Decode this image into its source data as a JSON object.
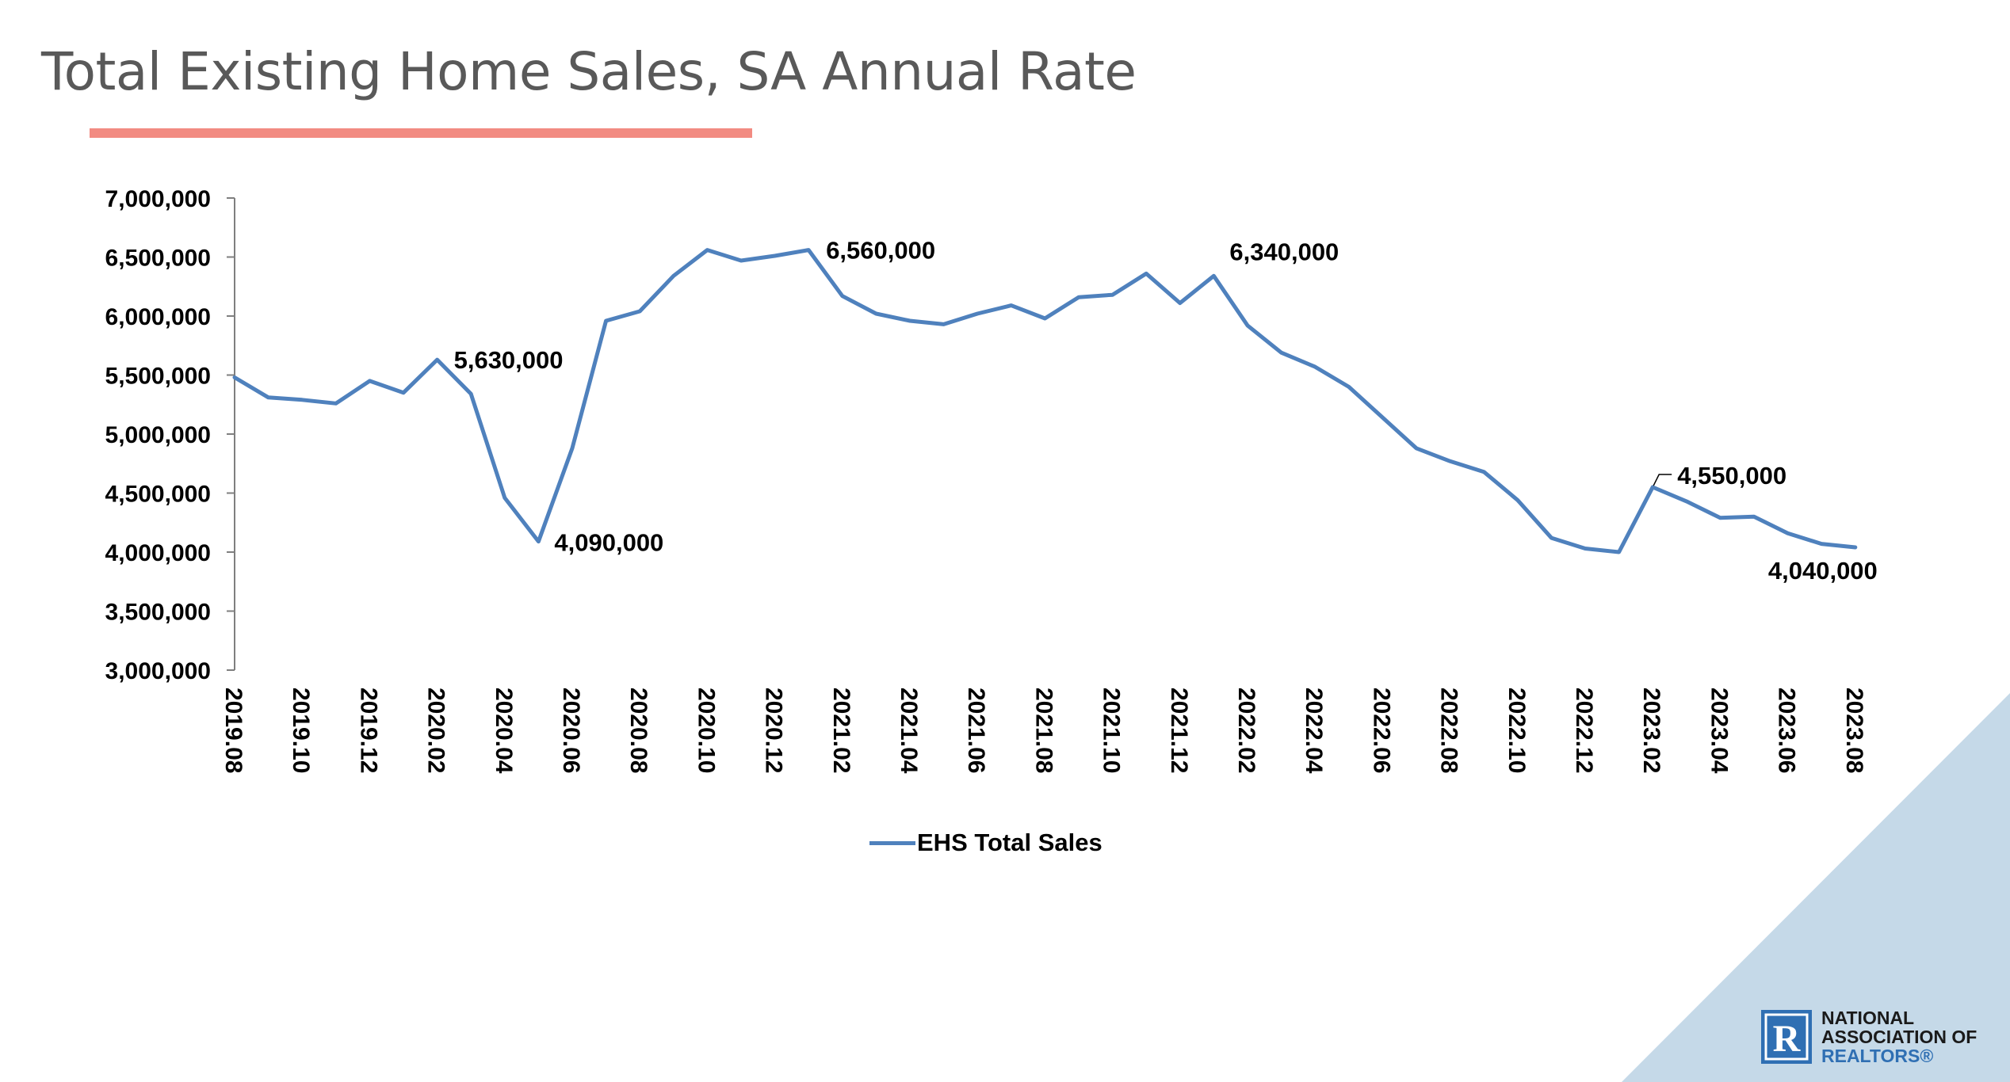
{
  "page": {
    "title": "Total Existing Home Sales, SA Annual Rate"
  },
  "colors": {
    "series": "#4f81bd",
    "title_underline": "#f28b82",
    "corner_triangle": "#c5d9e8",
    "logo_blue": "#2f6fb3"
  },
  "logo": {
    "icon": "realtor-r-logo-icon",
    "line1": "NATIONAL",
    "line2": "ASSOCIATION OF",
    "line3": "REALTORS®"
  },
  "chart_data": {
    "type": "line",
    "title": "Total Existing Home Sales, SA Annual Rate",
    "xlabel": "",
    "ylabel": "",
    "ylim": [
      3000000,
      7000000
    ],
    "y_ticks": [
      3000000,
      3500000,
      4000000,
      4500000,
      5000000,
      5500000,
      6000000,
      6500000,
      7000000
    ],
    "y_tick_labels": [
      "3,000,000",
      "3,500,000",
      "4,000,000",
      "4,500,000",
      "5,000,000",
      "5,500,000",
      "6,000,000",
      "6,500,000",
      "7,000,000"
    ],
    "x_tick_labels": [
      "2019.08",
      "2019.10",
      "2019.12",
      "2020.02",
      "2020.04",
      "2020.06",
      "2020.08",
      "2020.10",
      "2020.12",
      "2021.02",
      "2021.04",
      "2021.06",
      "2021.08",
      "2021.10",
      "2021.12",
      "2022.02",
      "2022.04",
      "2022.06",
      "2022.08",
      "2022.10",
      "2022.12",
      "2023.02",
      "2023.04",
      "2023.06",
      "2023.08"
    ],
    "x_tick_label_rotation": "vertical",
    "grid": false,
    "legend": "bottom",
    "x": [
      "2019.08",
      "2019.09",
      "2019.10",
      "2019.11",
      "2019.12",
      "2020.01",
      "2020.02",
      "2020.03",
      "2020.04",
      "2020.05",
      "2020.06",
      "2020.07",
      "2020.08",
      "2020.09",
      "2020.10",
      "2020.11",
      "2020.12",
      "2021.01",
      "2021.02",
      "2021.03",
      "2021.04",
      "2021.05",
      "2021.06",
      "2021.07",
      "2021.08",
      "2021.09",
      "2021.10",
      "2021.11",
      "2021.12",
      "2022.01",
      "2022.02",
      "2022.03",
      "2022.04",
      "2022.05",
      "2022.06",
      "2022.07",
      "2022.08",
      "2022.09",
      "2022.10",
      "2022.11",
      "2022.12",
      "2023.01",
      "2023.02",
      "2023.03",
      "2023.04",
      "2023.05",
      "2023.06",
      "2023.07",
      "2023.08"
    ],
    "series": [
      {
        "name": "EHS Total Sales",
        "values": [
          5480000,
          5310000,
          5290000,
          5260000,
          5450000,
          5350000,
          5630000,
          5340000,
          4460000,
          4090000,
          4880000,
          5960000,
          6040000,
          6340000,
          6560000,
          6470000,
          6510000,
          6560000,
          6170000,
          6020000,
          5960000,
          5930000,
          6020000,
          6090000,
          5980000,
          6160000,
          6180000,
          6360000,
          6110000,
          6340000,
          5920000,
          5690000,
          5570000,
          5400000,
          5140000,
          4880000,
          4770000,
          4680000,
          4440000,
          4120000,
          4030000,
          4000000,
          4550000,
          4430000,
          4290000,
          4300000,
          4160000,
          4070000,
          4040000
        ]
      }
    ],
    "annotations": [
      {
        "x": "2020.02",
        "value": 5630000,
        "label": "5,630,000",
        "position": "right"
      },
      {
        "x": "2020.05",
        "value": 4090000,
        "label": "4,090,000",
        "position": "right"
      },
      {
        "x": "2021.01",
        "value": 6560000,
        "label": "6,560,000",
        "position": "right"
      },
      {
        "x": "2022.01",
        "value": 6340000,
        "label": "6,340,000",
        "position": "right"
      },
      {
        "x": "2023.02",
        "value": 4550000,
        "label": "4,550,000",
        "position": "above-right"
      },
      {
        "x": "2023.08",
        "value": 4040000,
        "label": "4,040,000",
        "position": "below-left"
      }
    ]
  }
}
